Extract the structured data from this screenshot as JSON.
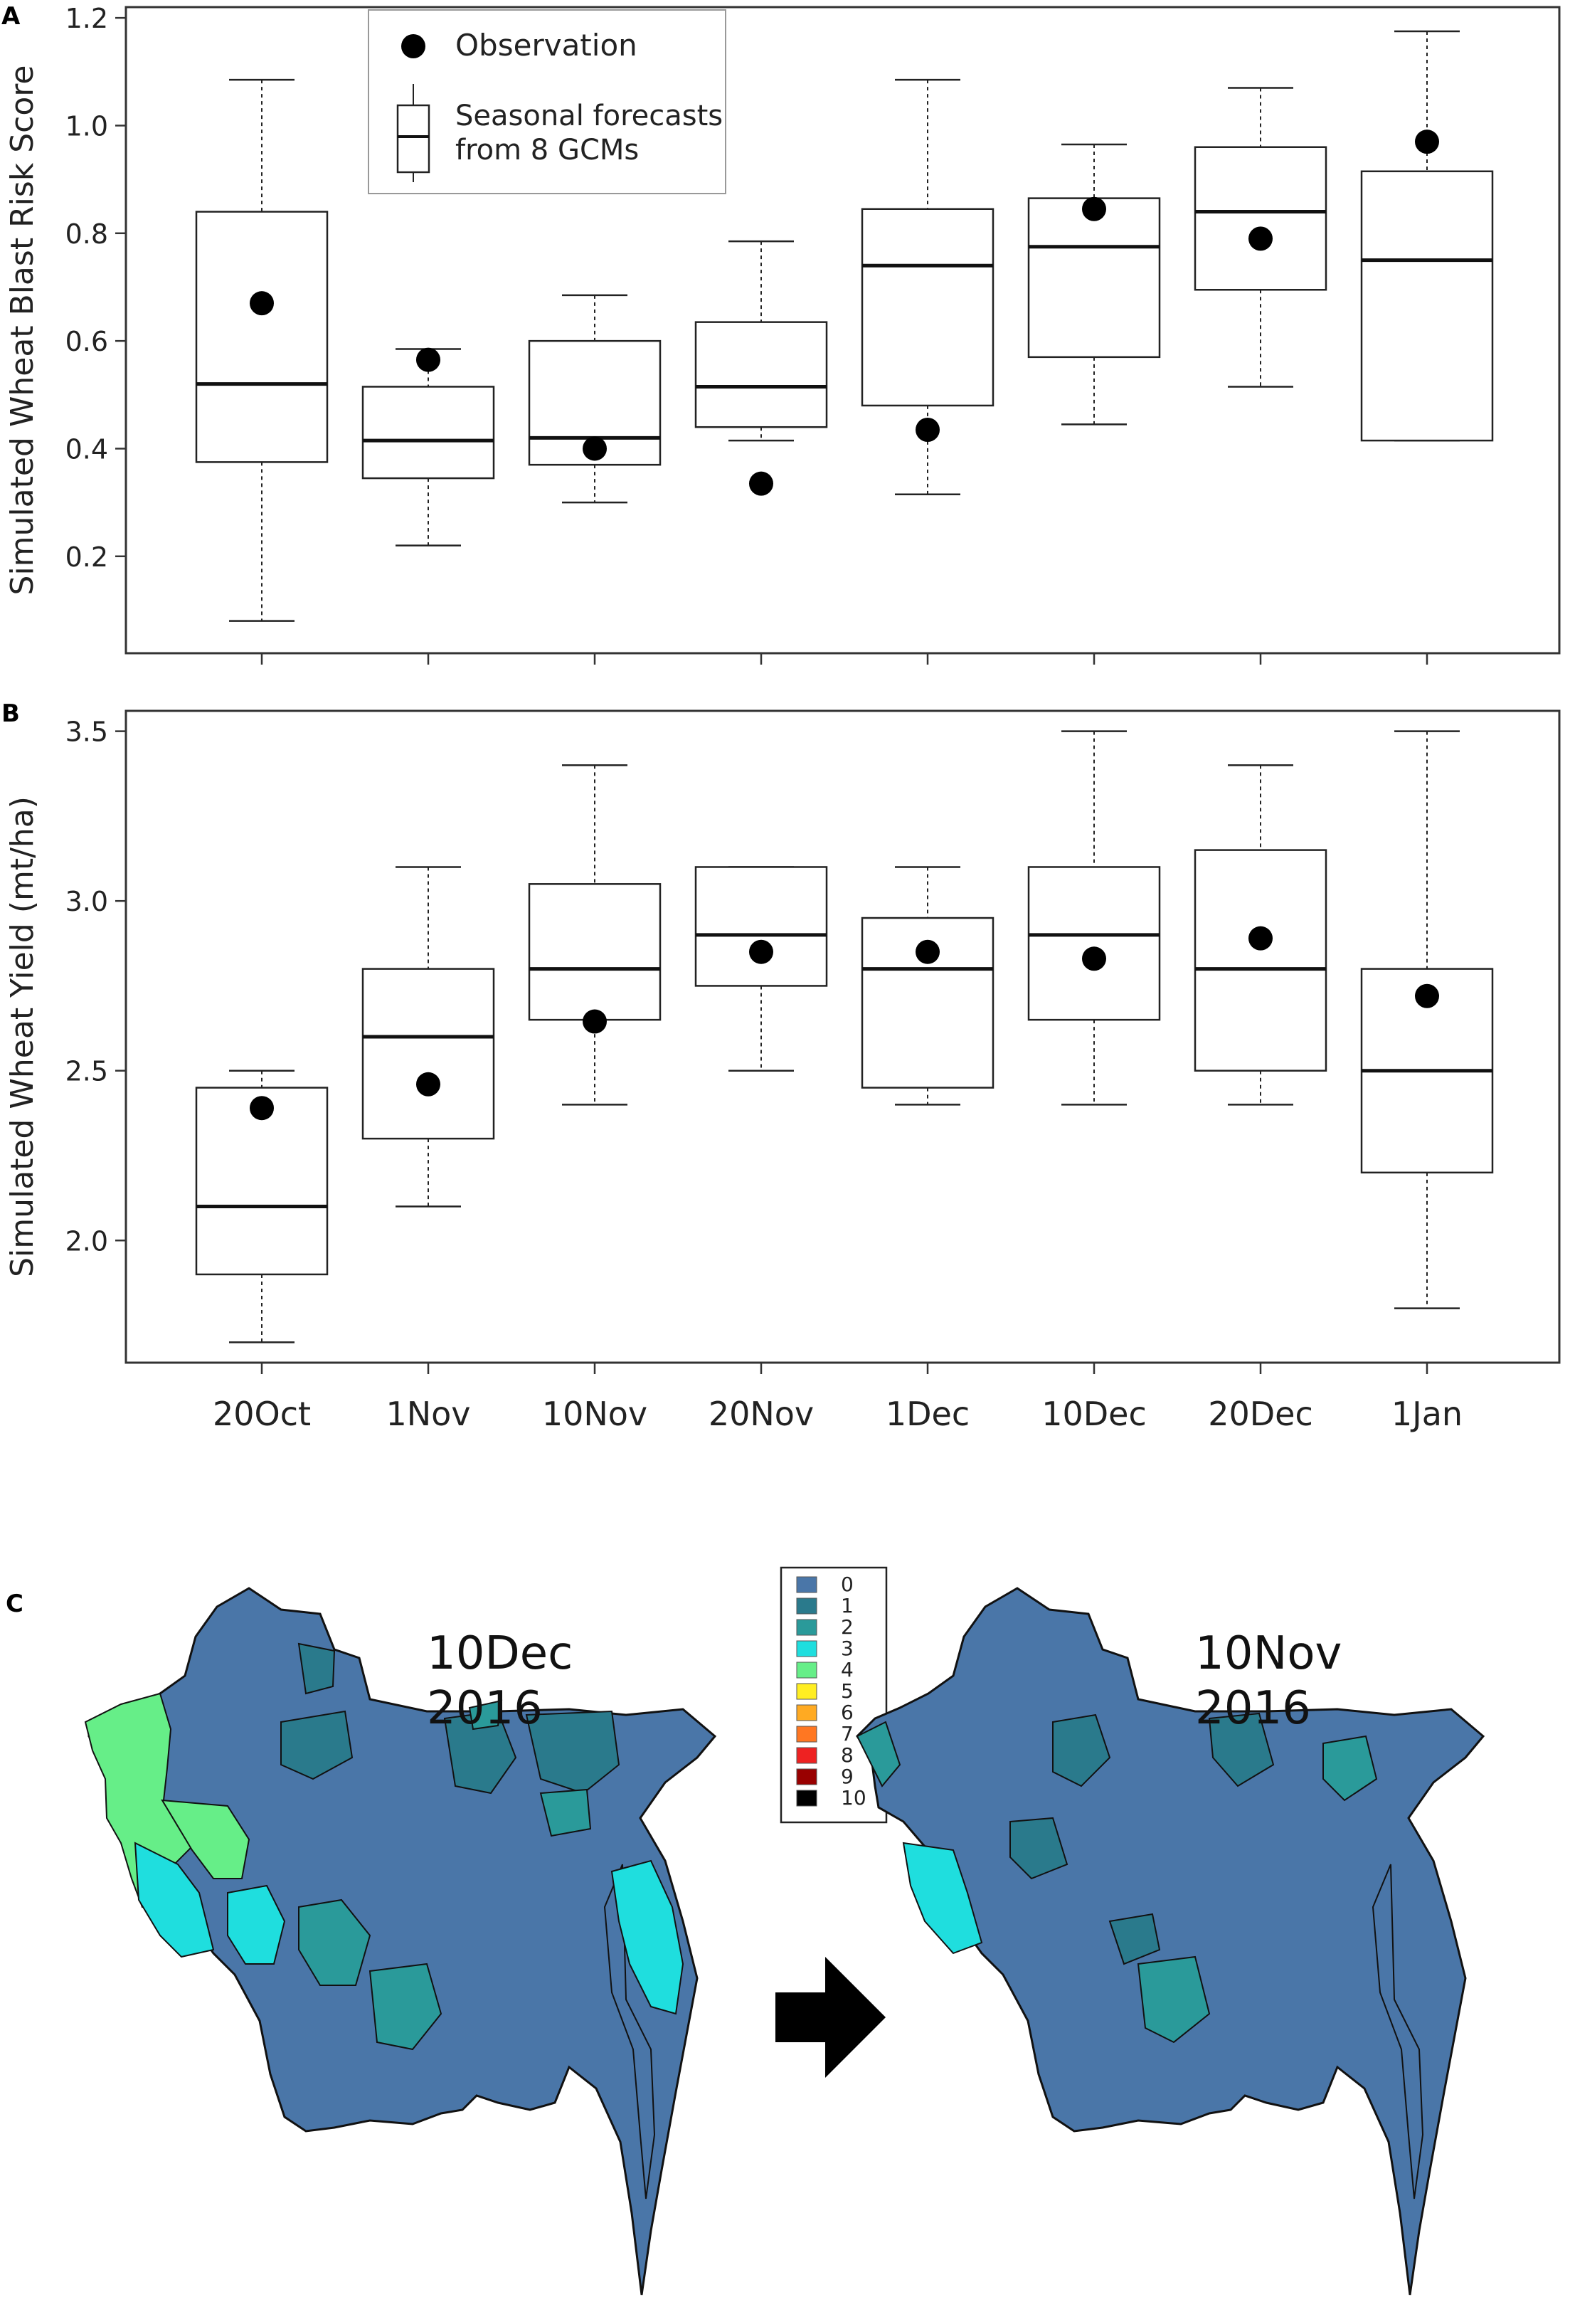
{
  "panel_labels": {
    "a": "A",
    "b": "B",
    "c": "C"
  },
  "legend": {
    "observation": "Observation",
    "forecast_line1": "Seasonal forecasts",
    "forecast_line2": "from 8 GCMs"
  },
  "chart_data": [
    {
      "type": "box",
      "panel": "A",
      "title": "",
      "xlabel": "",
      "ylabel": "Simulated Wheat Blast Risk Score",
      "categories": [
        "20Oct",
        "1Nov",
        "10Nov",
        "20Nov",
        "1Dec",
        "10Dec",
        "20Dec",
        "1Jan"
      ],
      "ylim": [
        0.02,
        1.22
      ],
      "yticks": [
        0.2,
        0.4,
        0.6,
        0.8,
        1.0,
        1.2
      ],
      "ytick_labels": [
        "0.2",
        "0.4",
        "0.6",
        "0.8",
        "1.0",
        "1.2"
      ],
      "boxes": [
        {
          "min": 0.08,
          "q1": 0.375,
          "median": 0.52,
          "q3": 0.84,
          "max": 1.085
        },
        {
          "min": 0.22,
          "q1": 0.345,
          "median": 0.415,
          "q3": 0.515,
          "max": 0.585
        },
        {
          "min": 0.3,
          "q1": 0.37,
          "median": 0.42,
          "q3": 0.6,
          "max": 0.685
        },
        {
          "min": 0.415,
          "q1": 0.44,
          "median": 0.515,
          "q3": 0.635,
          "max": 0.785
        },
        {
          "min": 0.315,
          "q1": 0.48,
          "median": 0.74,
          "q3": 0.845,
          "max": 1.085
        },
        {
          "min": 0.445,
          "q1": 0.57,
          "median": 0.775,
          "q3": 0.865,
          "max": 0.965
        },
        {
          "min": 0.515,
          "q1": 0.695,
          "median": 0.84,
          "q3": 0.96,
          "max": 1.07
        },
        {
          "min": 0.415,
          "q1": 0.415,
          "median": 0.75,
          "q3": 0.915,
          "max": 1.175
        }
      ],
      "observations": [
        0.67,
        0.565,
        0.4,
        0.335,
        0.435,
        0.845,
        0.79,
        0.97
      ]
    },
    {
      "type": "box",
      "panel": "B",
      "title": "",
      "xlabel": "",
      "ylabel": "Simulated Wheat Yield (mt/ha)",
      "categories": [
        "20Oct",
        "1Nov",
        "10Nov",
        "20Nov",
        "1Dec",
        "10Dec",
        "20Dec",
        "1Jan"
      ],
      "ylim": [
        1.64,
        3.56
      ],
      "yticks": [
        2.0,
        2.5,
        3.0,
        3.5
      ],
      "ytick_labels": [
        "2.0",
        "2.5",
        "3.0",
        "3.5"
      ],
      "boxes": [
        {
          "min": 1.7,
          "q1": 1.9,
          "median": 2.1,
          "q3": 2.45,
          "max": 2.5
        },
        {
          "min": 2.1,
          "q1": 2.3,
          "median": 2.6,
          "q3": 2.8,
          "max": 3.1
        },
        {
          "min": 2.4,
          "q1": 2.65,
          "median": 2.8,
          "q3": 3.05,
          "max": 3.4
        },
        {
          "min": 2.5,
          "q1": 2.75,
          "median": 2.9,
          "q3": 3.1,
          "max": 3.1
        },
        {
          "min": 2.4,
          "q1": 2.45,
          "median": 2.8,
          "q3": 2.95,
          "max": 3.1
        },
        {
          "min": 2.4,
          "q1": 2.65,
          "median": 2.9,
          "q3": 3.1,
          "max": 3.5
        },
        {
          "min": 2.4,
          "q1": 2.5,
          "median": 2.8,
          "q3": 3.15,
          "max": 3.4
        },
        {
          "min": 1.8,
          "q1": 2.2,
          "median": 2.5,
          "q3": 2.8,
          "max": 3.5
        }
      ],
      "observations": [
        2.39,
        2.46,
        2.645,
        2.85,
        2.85,
        2.83,
        2.89,
        2.72
      ]
    }
  ],
  "maps": {
    "left_title_line1": "10Dec",
    "left_title_line2": "2016",
    "right_title_line1": "10Nov",
    "right_title_line2": "2016",
    "colors": [
      "#4a76a8",
      "#2a7a8c",
      "#2a9a9a",
      "#1fdede",
      "#66ee88",
      "#ffee22",
      "#ffaa22",
      "#ff7722",
      "#ee2222",
      "#990000",
      "#000000"
    ],
    "legend_labels": [
      "0",
      "1",
      "2",
      "3",
      "4",
      "5",
      "6",
      "7",
      "8",
      "9",
      "10"
    ]
  }
}
